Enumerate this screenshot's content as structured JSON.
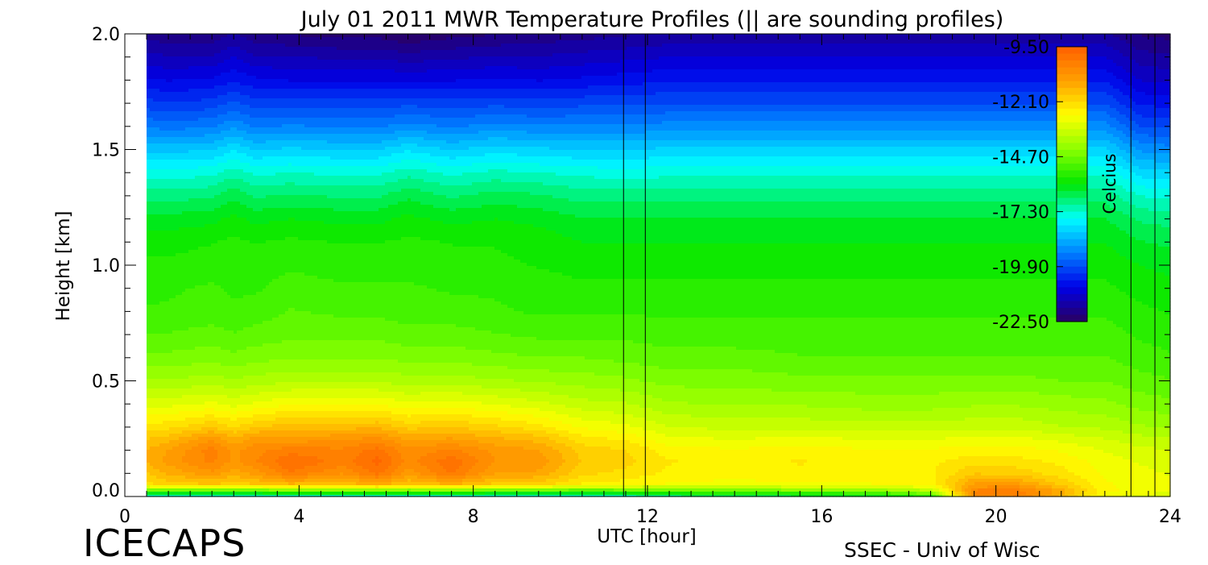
{
  "chart_data": {
    "type": "heatmap",
    "title": "July 01 2011 MWR Temperature Profiles (|| are sounding profiles)",
    "xlabel": "UTC [hour]",
    "ylabel": "Height [km]",
    "xlim": [
      0,
      24
    ],
    "ylim": [
      0,
      2.0
    ],
    "x_ticks": [
      0,
      4,
      8,
      12,
      16,
      20,
      24
    ],
    "x_tick_labels": [
      "0",
      "4",
      "8",
      "12",
      "16",
      "20",
      "24"
    ],
    "y_ticks": [
      0.0,
      0.5,
      1.0,
      1.5,
      2.0
    ],
    "y_tick_labels": [
      "0.0",
      "0.5",
      "1.0",
      "1.5",
      "2.0"
    ],
    "data_coverage_hours": [
      0.5,
      24
    ],
    "sounding_times_hours": [
      11.45,
      11.95,
      23.1,
      23.65
    ],
    "height_levels_km": [
      0.0,
      0.02,
      0.05,
      0.1,
      0.15,
      0.2,
      0.25,
      0.3,
      0.4,
      0.5,
      0.6,
      0.7,
      0.8,
      0.9,
      1.0,
      1.1,
      1.2,
      1.3,
      1.4,
      1.5,
      1.6,
      1.7,
      1.8,
      1.9,
      2.0
    ],
    "profiles": [
      {
        "time": 0.5,
        "temperatures": [
          -17.5,
          -15.5,
          -12.2,
          -11.8,
          -11.4,
          -11.4,
          -11.8,
          -12.3,
          -13.2,
          -14.0,
          -14.6,
          -15.0,
          -15.3,
          -15.5,
          -15.6,
          -15.8,
          -16.2,
          -16.8,
          -17.5,
          -18.4,
          -19.3,
          -20.1,
          -20.8,
          -21.4,
          -22.0
        ]
      },
      {
        "time": 1.0,
        "temperatures": [
          -17.5,
          -15.5,
          -12.0,
          -11.4,
          -11.0,
          -11.1,
          -11.6,
          -12.2,
          -13.2,
          -14.0,
          -14.6,
          -15.0,
          -15.3,
          -15.4,
          -15.6,
          -15.8,
          -16.2,
          -16.8,
          -17.5,
          -18.4,
          -19.4,
          -20.2,
          -20.9,
          -21.5,
          -22.1
        ]
      },
      {
        "time": 2.0,
        "temperatures": [
          -17.5,
          -15.4,
          -11.8,
          -10.9,
          -10.4,
          -10.3,
          -10.9,
          -11.8,
          -13.0,
          -13.9,
          -14.5,
          -14.9,
          -15.2,
          -15.3,
          -15.5,
          -15.7,
          -16.1,
          -16.7,
          -17.4,
          -18.3,
          -19.3,
          -20.1,
          -20.8,
          -21.5,
          -22.1
        ]
      },
      {
        "time": 2.5,
        "temperatures": [
          -17.6,
          -15.5,
          -12.0,
          -11.3,
          -10.9,
          -10.9,
          -11.4,
          -12.1,
          -13.2,
          -14.0,
          -14.6,
          -15.0,
          -15.3,
          -15.4,
          -15.5,
          -15.6,
          -15.9,
          -16.4,
          -17.1,
          -18.0,
          -19.0,
          -19.8,
          -20.6,
          -21.2,
          -21.8
        ]
      },
      {
        "time": 3.0,
        "temperatures": [
          -17.5,
          -15.4,
          -11.8,
          -11.0,
          -10.5,
          -10.6,
          -11.0,
          -11.8,
          -13.0,
          -13.9,
          -14.5,
          -14.9,
          -15.2,
          -15.4,
          -15.5,
          -15.7,
          -16.1,
          -16.7,
          -17.4,
          -18.3,
          -19.3,
          -20.1,
          -20.8,
          -21.5,
          -22.1
        ]
      },
      {
        "time": 3.8,
        "temperatures": [
          -17.4,
          -15.2,
          -11.6,
          -10.2,
          -9.8,
          -10.3,
          -11.0,
          -11.6,
          -12.8,
          -13.8,
          -14.4,
          -14.8,
          -15.0,
          -15.2,
          -15.4,
          -15.6,
          -16.0,
          -16.6,
          -17.3,
          -18.2,
          -19.2,
          -20.1,
          -20.9,
          -21.5,
          -22.2
        ]
      },
      {
        "time": 5.0,
        "temperatures": [
          -17.4,
          -15.2,
          -11.7,
          -10.8,
          -10.3,
          -10.4,
          -10.9,
          -11.6,
          -12.8,
          -13.8,
          -14.4,
          -14.8,
          -15.1,
          -15.3,
          -15.5,
          -15.7,
          -16.1,
          -16.7,
          -17.4,
          -18.3,
          -19.3,
          -20.1,
          -20.9,
          -21.6,
          -22.3
        ]
      },
      {
        "time": 5.8,
        "temperatures": [
          -17.4,
          -15.1,
          -11.4,
          -10.0,
          -9.7,
          -10.0,
          -10.7,
          -11.5,
          -12.8,
          -13.8,
          -14.4,
          -14.8,
          -15.1,
          -15.3,
          -15.5,
          -15.7,
          -16.1,
          -16.7,
          -17.4,
          -18.3,
          -19.3,
          -20.1,
          -20.9,
          -21.6,
          -22.3
        ]
      },
      {
        "time": 6.5,
        "temperatures": [
          -17.5,
          -15.3,
          -11.8,
          -11.0,
          -10.6,
          -10.7,
          -11.2,
          -11.9,
          -13.0,
          -13.9,
          -14.5,
          -14.9,
          -15.2,
          -15.3,
          -15.5,
          -15.6,
          -15.9,
          -16.4,
          -17.1,
          -18.0,
          -19.1,
          -20.0,
          -20.9,
          -21.7,
          -22.5
        ]
      },
      {
        "time": 7.5,
        "temperatures": [
          -17.4,
          -15.2,
          -11.5,
          -10.1,
          -9.9,
          -10.4,
          -11.1,
          -11.8,
          -12.9,
          -13.9,
          -14.5,
          -14.9,
          -15.2,
          -15.4,
          -15.5,
          -15.7,
          -16.1,
          -16.7,
          -17.4,
          -18.3,
          -19.3,
          -20.1,
          -20.9,
          -21.6,
          -22.3
        ]
      },
      {
        "time": 8.5,
        "temperatures": [
          -17.5,
          -15.4,
          -11.9,
          -11.1,
          -10.8,
          -10.9,
          -11.4,
          -12.0,
          -13.1,
          -14.0,
          -14.6,
          -15.0,
          -15.3,
          -15.4,
          -15.6,
          -15.7,
          -16.0,
          -16.5,
          -17.2,
          -18.1,
          -19.1,
          -20.0,
          -20.8,
          -21.5,
          -22.2
        ]
      },
      {
        "time": 9.5,
        "temperatures": [
          -17.5,
          -15.4,
          -12.0,
          -11.2,
          -10.9,
          -11.1,
          -11.6,
          -12.3,
          -13.3,
          -14.1,
          -14.7,
          -15.1,
          -15.4,
          -15.5,
          -15.7,
          -15.8,
          -16.1,
          -16.6,
          -17.3,
          -18.2,
          -19.2,
          -20.1,
          -20.9,
          -21.5,
          -22.1
        ]
      },
      {
        "time": 10.5,
        "temperatures": [
          -17.6,
          -15.6,
          -12.5,
          -12.0,
          -11.8,
          -11.9,
          -12.3,
          -12.8,
          -13.6,
          -14.2,
          -14.7,
          -15.1,
          -15.4,
          -15.6,
          -15.8,
          -16.0,
          -16.3,
          -16.8,
          -17.4,
          -18.3,
          -19.2,
          -20.0,
          -20.8,
          -21.4,
          -22.0
        ]
      },
      {
        "time": 11.5,
        "temperatures": [
          -17.4,
          -15.4,
          -12.6,
          -12.2,
          -12.0,
          -12.1,
          -12.5,
          -13.0,
          -13.7,
          -14.3,
          -14.8,
          -15.1,
          -15.4,
          -15.6,
          -15.8,
          -16.0,
          -16.3,
          -16.8,
          -17.5,
          -18.3,
          -19.2,
          -20.0,
          -20.7,
          -21.3,
          -21.9
        ]
      },
      {
        "time": 12.5,
        "temperatures": [
          -17.0,
          -15.2,
          -12.8,
          -12.5,
          -12.4,
          -12.6,
          -13.0,
          -13.4,
          -14.0,
          -14.5,
          -14.9,
          -15.2,
          -15.4,
          -15.6,
          -15.8,
          -16.0,
          -16.3,
          -16.8,
          -17.4,
          -18.2,
          -19.1,
          -19.9,
          -20.6,
          -21.2,
          -21.8
        ]
      },
      {
        "time": 14.0,
        "temperatures": [
          -16.8,
          -15.0,
          -12.9,
          -12.6,
          -12.5,
          -12.7,
          -13.1,
          -13.5,
          -14.1,
          -14.5,
          -14.9,
          -15.2,
          -15.4,
          -15.6,
          -15.8,
          -16.0,
          -16.3,
          -16.8,
          -17.4,
          -18.2,
          -19.1,
          -19.9,
          -20.6,
          -21.2,
          -21.8
        ]
      },
      {
        "time": 15.5,
        "temperatures": [
          -16.6,
          -14.9,
          -12.8,
          -12.5,
          -12.4,
          -12.6,
          -13.0,
          -13.5,
          -14.1,
          -14.6,
          -15.0,
          -15.2,
          -15.4,
          -15.6,
          -15.8,
          -16.0,
          -16.3,
          -16.8,
          -17.4,
          -18.2,
          -19.1,
          -19.9,
          -20.6,
          -21.2,
          -21.8
        ]
      },
      {
        "time": 17.0,
        "temperatures": [
          -16.5,
          -14.8,
          -12.8,
          -12.5,
          -12.5,
          -12.7,
          -13.1,
          -13.6,
          -14.2,
          -14.6,
          -15.0,
          -15.2,
          -15.4,
          -15.6,
          -15.8,
          -16.0,
          -16.3,
          -16.8,
          -17.4,
          -18.2,
          -19.1,
          -19.9,
          -20.6,
          -21.2,
          -21.8
        ]
      },
      {
        "time": 18.5,
        "temperatures": [
          -15.8,
          -14.0,
          -12.6,
          -12.5,
          -12.5,
          -12.7,
          -13.1,
          -13.6,
          -14.2,
          -14.6,
          -15.0,
          -15.2,
          -15.4,
          -15.6,
          -15.8,
          -16.0,
          -16.3,
          -16.8,
          -17.4,
          -18.2,
          -19.1,
          -19.9,
          -20.6,
          -21.2,
          -21.8
        ]
      },
      {
        "time": 19.5,
        "temperatures": [
          -10.8,
          -10.3,
          -11.0,
          -11.8,
          -12.2,
          -12.6,
          -13.0,
          -13.5,
          -14.1,
          -14.6,
          -15.0,
          -15.2,
          -15.4,
          -15.6,
          -15.8,
          -16.0,
          -16.3,
          -16.8,
          -17.4,
          -18.2,
          -19.1,
          -19.9,
          -20.6,
          -21.2,
          -21.8
        ]
      },
      {
        "time": 20.5,
        "temperatures": [
          -10.5,
          -10.2,
          -11.0,
          -11.9,
          -12.3,
          -12.6,
          -13.0,
          -13.5,
          -14.1,
          -14.6,
          -15.0,
          -15.2,
          -15.4,
          -15.6,
          -15.8,
          -16.0,
          -16.3,
          -16.8,
          -17.4,
          -18.2,
          -19.1,
          -19.9,
          -20.6,
          -21.2,
          -21.8
        ]
      },
      {
        "time": 21.5,
        "temperatures": [
          -11.6,
          -11.2,
          -11.8,
          -12.3,
          -12.5,
          -12.8,
          -13.2,
          -13.7,
          -14.2,
          -14.7,
          -15.0,
          -15.2,
          -15.4,
          -15.6,
          -15.8,
          -16.0,
          -16.3,
          -16.8,
          -17.4,
          -18.2,
          -19.1,
          -19.9,
          -20.6,
          -21.2,
          -21.8
        ]
      },
      {
        "time": 22.5,
        "temperatures": [
          -13.0,
          -12.6,
          -12.7,
          -12.8,
          -12.9,
          -13.1,
          -13.4,
          -13.8,
          -14.3,
          -14.7,
          -15.0,
          -15.2,
          -15.4,
          -15.6,
          -15.8,
          -16.0,
          -16.3,
          -16.8,
          -17.4,
          -18.2,
          -19.1,
          -19.9,
          -20.6,
          -21.2,
          -21.8
        ]
      },
      {
        "time": 23.3,
        "temperatures": [
          -13.3,
          -12.9,
          -12.9,
          -13.0,
          -13.1,
          -13.3,
          -13.6,
          -14.0,
          -14.5,
          -14.9,
          -15.2,
          -15.4,
          -15.6,
          -15.8,
          -16.0,
          -16.3,
          -16.7,
          -17.3,
          -18.1,
          -19.0,
          -19.9,
          -20.6,
          -21.2,
          -21.7,
          -22.2
        ]
      },
      {
        "time": 24.0,
        "temperatures": [
          -13.4,
          -13.0,
          -13.0,
          -13.1,
          -13.2,
          -13.4,
          -13.7,
          -14.1,
          -14.6,
          -15.0,
          -15.3,
          -15.5,
          -15.7,
          -15.9,
          -16.1,
          -16.4,
          -16.8,
          -17.4,
          -18.2,
          -19.1,
          -20.0,
          -20.7,
          -21.3,
          -21.8,
          -22.3
        ]
      }
    ],
    "colorbar": {
      "label": "Celcius",
      "tick_labels": [
        "-9.50",
        "-12.10",
        "-14.70",
        "-17.30",
        "-19.90",
        "-22.50"
      ],
      "min": -22.5,
      "max": -9.5,
      "levels": 40,
      "placement": "upper-right inside plot"
    },
    "colors": {
      "palette": [
        "#2a0060",
        "#0000e8",
        "#0080ff",
        "#00ffff",
        "#00e600",
        "#8aff00",
        "#ffff00",
        "#ffa000",
        "#ff6000"
      ]
    }
  },
  "footer": {
    "logo": "ICECAPS",
    "credit": "SSEC - Univ of Wisc"
  }
}
